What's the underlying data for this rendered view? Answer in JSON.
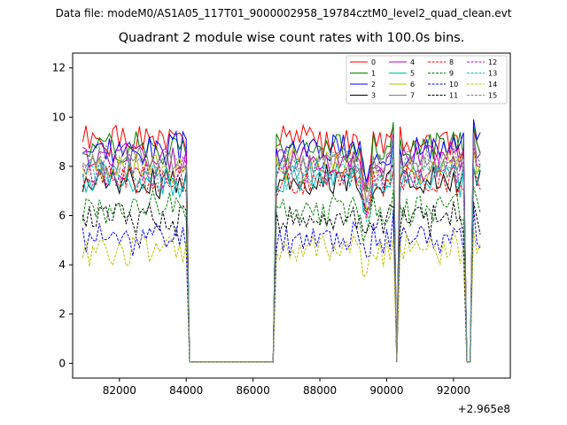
{
  "figure": {
    "suptitle": "Data file: modeM0/AS1A05_117T01_9000002958_19784cztM0_level2_quad_clean.evt"
  },
  "chart_data": {
    "type": "line",
    "title": "Quadrant 2 module wise count rates with 100.0s bins.",
    "xlabel": "",
    "ylabel": "",
    "x_offset_label": "+2.965e8",
    "xlim": [
      80600,
      93700
    ],
    "ylim": [
      -0.6,
      12.6
    ],
    "xticks": [
      82000,
      84000,
      86000,
      88000,
      90000,
      92000
    ],
    "yticks": [
      0,
      2,
      4,
      6,
      8,
      10,
      12
    ],
    "grid": false,
    "legend_placement": "top-right",
    "legend_columns": 4,
    "x": [
      80900,
      81000,
      81100,
      81200,
      81300,
      81400,
      81500,
      81600,
      81700,
      81800,
      81900,
      82000,
      82100,
      82200,
      82300,
      82400,
      82500,
      82600,
      82700,
      82800,
      82900,
      83000,
      83100,
      83200,
      83300,
      83400,
      83500,
      83600,
      83700,
      83800,
      83900,
      84000,
      84100,
      84200,
      84300,
      84400,
      84500,
      84600,
      84700,
      84800,
      84900,
      85000,
      85100,
      85200,
      85300,
      85400,
      85500,
      85600,
      85700,
      85800,
      85900,
      86000,
      86100,
      86200,
      86300,
      86400,
      86500,
      86600,
      86700,
      86800,
      86900,
      87000,
      87100,
      87200,
      87300,
      87400,
      87500,
      87600,
      87700,
      87800,
      87900,
      88000,
      88100,
      88200,
      88300,
      88400,
      88500,
      88600,
      88700,
      88800,
      88900,
      89000,
      89100,
      89200,
      89300,
      89400,
      89500,
      89600,
      89700,
      89800,
      89900,
      90000,
      90100,
      90200,
      90300,
      90400,
      90500,
      90600,
      90700,
      90800,
      90900,
      91000,
      91100,
      91200,
      91300,
      91400,
      91500,
      91600,
      91700,
      91800,
      91900,
      92000,
      92100,
      92200,
      92300,
      92400,
      92500,
      92600,
      92700,
      92800
    ],
    "segments": [
      {
        "start": 80900,
        "end": 84000
      },
      {
        "start": 86700,
        "end": 90200
      },
      {
        "start": 90400,
        "end": 92300
      },
      {
        "start": 92600,
        "end": 92800
      }
    ],
    "zero_level": 0.05,
    "series": [
      {
        "name": "0",
        "color": "#ff0000",
        "dash": "solid",
        "level": 9.0,
        "seed": 1
      },
      {
        "name": "1",
        "color": "#008000",
        "dash": "solid",
        "level": 8.8,
        "seed": 2
      },
      {
        "name": "2",
        "color": "#0000ff",
        "dash": "solid",
        "level": 8.7,
        "seed": 3
      },
      {
        "name": "3",
        "color": "#000000",
        "dash": "solid",
        "level": 7.4,
        "seed": 4
      },
      {
        "name": "4",
        "color": "#bf00bf",
        "dash": "solid",
        "level": 8.3,
        "seed": 5
      },
      {
        "name": "5",
        "color": "#00bfbf",
        "dash": "solid",
        "level": 7.5,
        "seed": 6
      },
      {
        "name": "6",
        "color": "#bfbf00",
        "dash": "solid",
        "level": 8.0,
        "seed": 7
      },
      {
        "name": "7",
        "color": "#808080",
        "dash": "solid",
        "level": 8.1,
        "seed": 8
      },
      {
        "name": "8",
        "color": "#ff0000",
        "dash": "dashed",
        "level": 7.4,
        "seed": 9
      },
      {
        "name": "9",
        "color": "#008000",
        "dash": "dashed",
        "level": 6.3,
        "seed": 10
      },
      {
        "name": "10",
        "color": "#0000ff",
        "dash": "dashed",
        "level": 5.1,
        "seed": 11
      },
      {
        "name": "11",
        "color": "#000000",
        "dash": "dashed",
        "level": 5.9,
        "seed": 12
      },
      {
        "name": "12",
        "color": "#bf00bf",
        "dash": "dashed",
        "level": 7.8,
        "seed": 13
      },
      {
        "name": "13",
        "color": "#00bfbf",
        "dash": "dashed",
        "level": 7.6,
        "seed": 14
      },
      {
        "name": "14",
        "color": "#bfbf00",
        "dash": "dashed",
        "level": 4.6,
        "seed": 15
      },
      {
        "name": "15",
        "color": "#808080",
        "dash": "dashed",
        "level": 8.2,
        "seed": 16
      }
    ]
  }
}
